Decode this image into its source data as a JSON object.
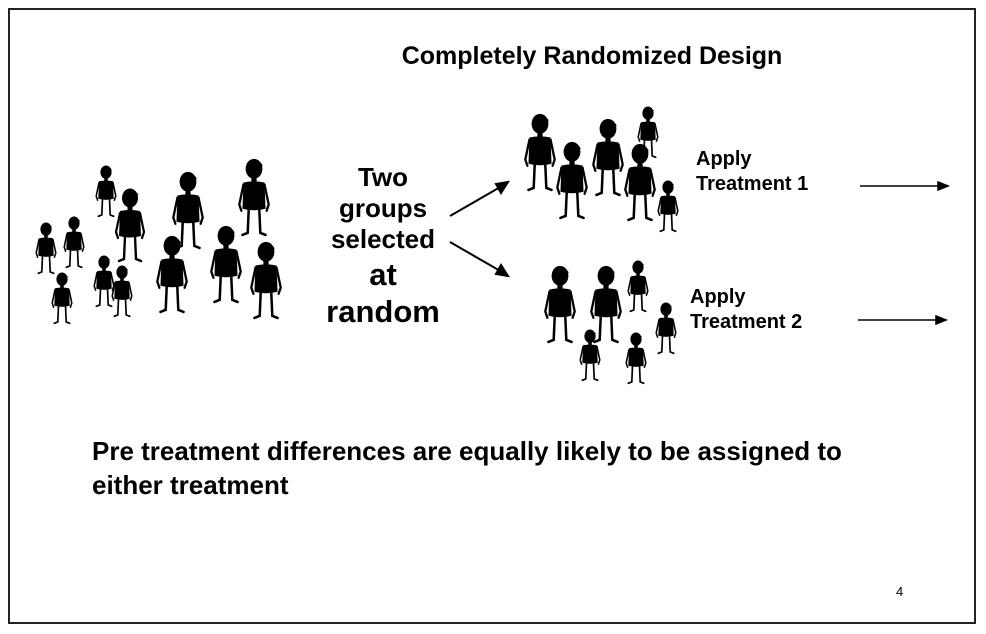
{
  "slide": {
    "title": "Completely Randomized Design",
    "middle_label": {
      "line1": "Two",
      "line2": "groups",
      "line3": "selected",
      "line4": "at",
      "line5": "random"
    },
    "treatment1": {
      "line1": "Apply",
      "line2": "Treatment 1"
    },
    "treatment2": {
      "line1": "Apply",
      "line2": "Treatment 2"
    },
    "footer": "Pre treatment differences are equally likely to be assigned to either treatment",
    "page_number": "4"
  },
  "icons": [
    "person-figure-icon",
    "arrow-icon"
  ],
  "colors": {
    "ink": "#000000",
    "background": "#ffffff"
  }
}
